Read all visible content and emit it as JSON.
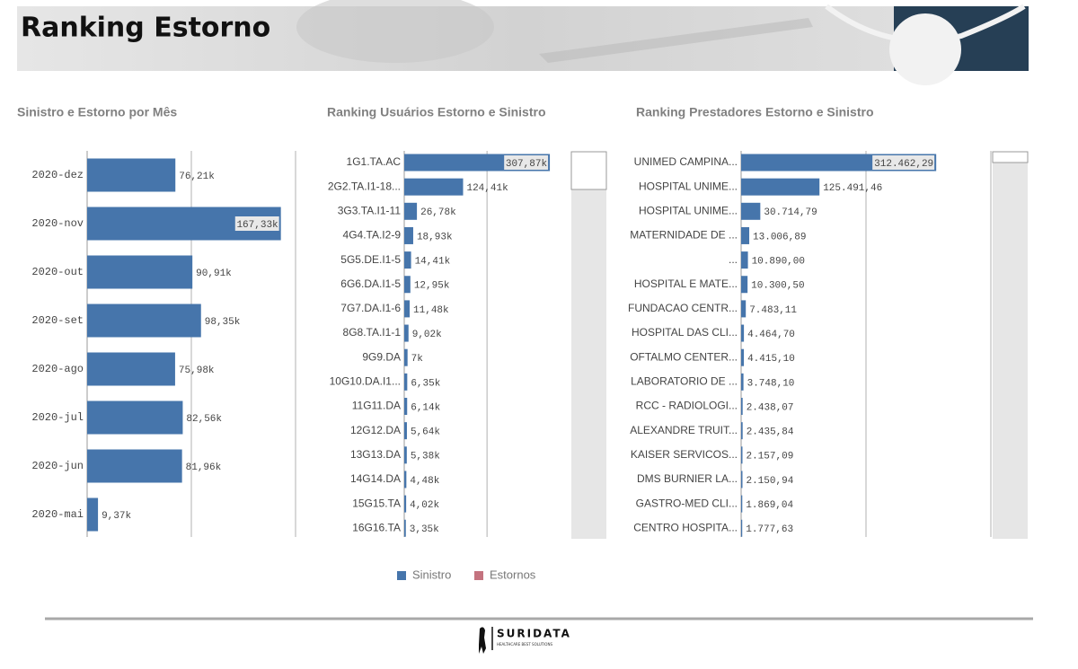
{
  "header": {
    "title": "Ranking Estorno"
  },
  "chart_data": [
    {
      "type": "bar",
      "orientation": "horizontal",
      "title": "Sinistro e Estorno por Mês",
      "color": "#4675ab",
      "categories": [
        "2020-dez",
        "2020-nov",
        "2020-out",
        "2020-set",
        "2020-ago",
        "2020-jul",
        "2020-jun",
        "2020-mai"
      ],
      "values": [
        76210,
        167330,
        90910,
        98350,
        75980,
        82560,
        81960,
        9370
      ],
      "value_labels": [
        "76,21k",
        "167,33k",
        "90,91k",
        "98,35k",
        "75,98k",
        "82,56k",
        "81,96k",
        "9,37k"
      ],
      "xlim": [
        0,
        180000
      ],
      "grid": [
        90000,
        180000
      ]
    },
    {
      "type": "bar",
      "orientation": "horizontal",
      "title": "Ranking Usuários Estorno e Sinistro",
      "color": "#4675ab",
      "categories": [
        "1G1.TA.AC",
        "2G2.TA.I1-18...",
        "3G3.TA.I1-11",
        "4G4.TA.I2-9",
        "5G5.DE.I1-5",
        "6G6.DA.I1-5",
        "7G7.DA.I1-6",
        "8G8.TA.I1-1",
        "9G9.DA",
        "10G10.DA.I1...",
        "11G11.DA",
        "12G12.DA",
        "13G13.DA",
        "14G14.DA",
        "15G15.TA",
        "16G16.TA"
      ],
      "values": [
        307870,
        124410,
        26780,
        18930,
        14410,
        12950,
        11480,
        9020,
        7000,
        6350,
        6140,
        5640,
        5380,
        4480,
        4020,
        3350
      ],
      "value_labels": [
        "307,87k",
        "124,41k",
        "26,78k",
        "18,93k",
        "14,41k",
        "12,95k",
        "11,48k",
        "9,02k",
        "7k",
        "6,35k",
        "6,14k",
        "5,64k",
        "5,38k",
        "4,48k",
        "4,02k",
        "3,35k"
      ],
      "xlim": [
        0,
        340000
      ],
      "grid": [
        175000
      ]
    },
    {
      "type": "bar",
      "orientation": "horizontal",
      "title": "Ranking Prestadores Estorno e Sinistro",
      "color": "#4675ab",
      "categories": [
        "UNIMED CAMPINA...",
        "HOSPITAL UNIME...",
        "HOSPITAL UNIME...",
        "MATERNIDADE DE ...",
        "...",
        "HOSPITAL E MATE...",
        "FUNDACAO CENTR...",
        "HOSPITAL DAS CLI...",
        "OFTALMO CENTER...",
        "LABORATORIO DE ...",
        "RCC - RADIOLOGI...",
        "ALEXANDRE TRUIT...",
        "KAISER SERVICOS...",
        "DMS BURNIER LA...",
        "GASTRO-MED CLI...",
        "CENTRO HOSPITA..."
      ],
      "values": [
        312462.29,
        125491.46,
        30714.79,
        13006.89,
        10890.0,
        10300.5,
        7483.11,
        4464.7,
        4415.1,
        3748.1,
        2438.07,
        2435.84,
        2157.09,
        2150.94,
        1869.04,
        1777.63
      ],
      "value_labels": [
        "312.462,29",
        "125.491,46",
        "30.714,79",
        "13.006,89",
        "10.890,00",
        "10.300,50",
        "7.483,11",
        "4.464,70",
        "4.415,10",
        "3.748,10",
        "2.438,07",
        "2.435,84",
        "2.157,09",
        "2.150,94",
        "1.869,04",
        "1.777,63"
      ],
      "xlim": [
        0,
        400000
      ],
      "grid": [
        200000,
        400000
      ]
    }
  ],
  "legend": [
    {
      "name": "Sinistro",
      "color": "#4675ab"
    },
    {
      "name": "Estornos",
      "color": "#c4737f"
    }
  ],
  "footer": {
    "brand": "SURIDATA",
    "tagline": "HEALTHCARE BEST SOLUTIONS"
  }
}
